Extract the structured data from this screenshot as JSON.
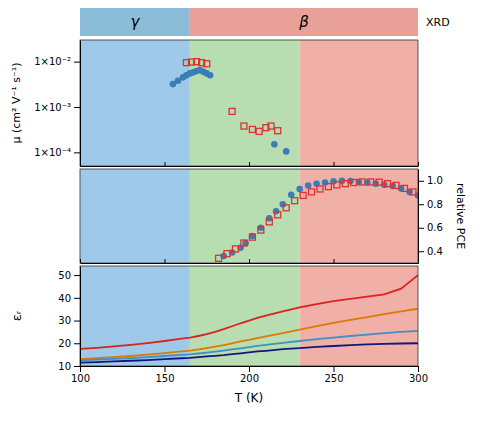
{
  "chart_data": [
    {
      "type": "span",
      "ylabel": "XRD",
      "xlim": [
        100,
        300
      ],
      "x": [
        100,
        165,
        300
      ],
      "categories": [
        "γ",
        "β"
      ],
      "colors": [
        "#8bbcd8",
        "#e8a098"
      ],
      "tick_labels": false
    },
    {
      "type": "scatter",
      "ylabel": "μ (cm² V⁻¹ s⁻¹)",
      "log": "y",
      "xlim": [
        100,
        300
      ],
      "xticks": [
        100,
        150,
        200,
        250,
        300
      ],
      "ylim": [
        5e-05,
        0.03
      ],
      "yticks": [
        {
          "value": 0.0001,
          "label": "1×10⁻⁴"
        },
        {
          "value": 0.001,
          "label": "1×10⁻³"
        },
        {
          "value": 0.01,
          "label": "1×10⁻²"
        }
      ],
      "tick_labels": "y",
      "grid": false,
      "bands": [
        100,
        165,
        230,
        300
      ],
      "band_colors": [
        "#9ec9e8",
        "#b8ddb0",
        "#f0b0a8"
      ],
      "series": [
        {
          "color": "#3a7db8",
          "marker": "circle",
          "x": [
            155,
            158,
            161,
            163,
            165,
            167,
            169,
            171,
            173,
            175,
            177,
            215,
            222
          ],
          "values": [
            0.0032,
            0.0038,
            0.0045,
            0.005,
            0.0055,
            0.0058,
            0.0062,
            0.0065,
            0.006,
            0.0055,
            0.005,
            0.00015,
            0.000105
          ]
        },
        {
          "color": "#e03030",
          "marker": "square",
          "x": [
            163,
            166,
            169,
            172,
            175,
            190,
            197,
            202,
            206,
            210,
            213,
            217
          ],
          "values": [
            0.0095,
            0.0098,
            0.01,
            0.0095,
            0.009,
            0.0008,
            0.00038,
            0.00032,
            0.00029,
            0.00035,
            0.00038,
            0.0003
          ]
        }
      ]
    },
    {
      "type": "scatter",
      "ylabel": "relative PCE",
      "xlim": [
        100,
        300
      ],
      "xticks": [
        100,
        150,
        200,
        250,
        300
      ],
      "ylim": [
        0.3,
        1.1
      ],
      "yticks": [
        0.4,
        0.6,
        0.8,
        {
          "value": 1.0,
          "label": "1.0"
        }
      ],
      "tick_labels": "y",
      "grid": false,
      "bands": [
        100,
        165,
        230,
        300
      ],
      "band_colors": [
        "#9ec9e8",
        "#b8ddb0",
        "#f0b0a8"
      ],
      "series": [
        {
          "color": "#3a7db8",
          "marker": "circle",
          "x": [
            185,
            190,
            195,
            198,
            202,
            207,
            212,
            216,
            220,
            225,
            230,
            235,
            240,
            245,
            250,
            255,
            260,
            265,
            270,
            275,
            280,
            285,
            290,
            295,
            300
          ],
          "values": [
            0.36,
            0.39,
            0.43,
            0.47,
            0.53,
            0.6,
            0.68,
            0.74,
            0.8,
            0.88,
            0.93,
            0.96,
            0.975,
            0.985,
            0.995,
            1.0,
            0.998,
            0.99,
            0.985,
            0.975,
            0.965,
            0.955,
            0.935,
            0.905,
            0.875
          ]
        },
        {
          "color": "#e03030",
          "marker": "square",
          "x": [
            182,
            187,
            192,
            197,
            202,
            207,
            212,
            217,
            222,
            227,
            232,
            237,
            242,
            247,
            252,
            257,
            262,
            267,
            272,
            277,
            282,
            287,
            292,
            297
          ],
          "values": [
            0.34,
            0.38,
            0.42,
            0.47,
            0.52,
            0.58,
            0.65,
            0.71,
            0.77,
            0.83,
            0.875,
            0.905,
            0.93,
            0.95,
            0.965,
            0.975,
            0.985,
            0.99,
            0.99,
            0.988,
            0.975,
            0.96,
            0.935,
            0.905
          ]
        }
      ]
    },
    {
      "type": "line",
      "xlabel": "T (K)",
      "ylabel": "εᵣ",
      "xlim": [
        100,
        300
      ],
      "xticks": [
        100,
        150,
        200,
        250,
        300
      ],
      "ylim": [
        10,
        54
      ],
      "yticks": [
        10,
        20,
        30,
        40,
        50
      ],
      "grid": false,
      "bands": [
        100,
        165,
        230,
        300
      ],
      "band_colors": [
        "#9ec9e8",
        "#b8ddb0",
        "#f0b0a8"
      ],
      "x": [
        100,
        110,
        120,
        130,
        140,
        150,
        160,
        165,
        170,
        175,
        180,
        185,
        190,
        195,
        200,
        205,
        210,
        220,
        230,
        240,
        250,
        260,
        270,
        280,
        290,
        300
      ],
      "series": [
        {
          "color": "#dd2020",
          "values": [
            17.5,
            18.0,
            18.6,
            19.3,
            20.1,
            21.0,
            22.0,
            22.5,
            23.2,
            24.0,
            25.0,
            26.2,
            27.5,
            28.8,
            30.0,
            31.2,
            32.2,
            34.0,
            35.8,
            37.2,
            38.5,
            39.5,
            40.5,
            41.5,
            44.0,
            50.0
          ]
        },
        {
          "color": "#e07800",
          "values": [
            13.0,
            13.4,
            13.9,
            14.4,
            15.0,
            15.7,
            16.4,
            16.8,
            17.3,
            17.9,
            18.5,
            19.2,
            20.0,
            20.8,
            21.5,
            22.3,
            23.0,
            24.5,
            26.0,
            27.5,
            29.0,
            30.3,
            31.5,
            32.8,
            34.0,
            35.2
          ]
        },
        {
          "color": "#4090c0",
          "values": [
            12.5,
            12.8,
            13.1,
            13.5,
            13.9,
            14.4,
            14.9,
            15.1,
            15.5,
            15.9,
            16.3,
            16.8,
            17.3,
            17.8,
            18.3,
            18.9,
            19.3,
            20.2,
            21.0,
            21.8,
            22.5,
            23.2,
            23.8,
            24.5,
            25.0,
            25.5
          ]
        },
        {
          "color": "#101878",
          "values": [
            11.5,
            11.7,
            12.0,
            12.3,
            12.6,
            13.0,
            13.4,
            13.6,
            13.9,
            14.2,
            14.5,
            14.8,
            15.2,
            15.6,
            16.0,
            16.4,
            16.7,
            17.4,
            17.9,
            18.4,
            18.8,
            19.2,
            19.5,
            19.7,
            19.9,
            20.0
          ]
        }
      ]
    }
  ]
}
